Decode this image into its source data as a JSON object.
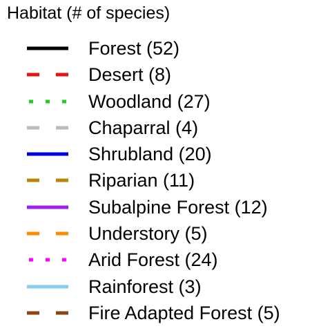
{
  "chart_data": {
    "type": "legend",
    "title": "Habitat (# of species)",
    "entries": [
      {
        "name": "Forest",
        "count": 52,
        "label": "Forest (52)",
        "color": "#000000",
        "line_style": "solid"
      },
      {
        "name": "Desert",
        "count": 8,
        "label": "Desert (8)",
        "color": "#ee1111",
        "line_style": "dashed"
      },
      {
        "name": "Woodland",
        "count": 27,
        "label": "Woodland (27)",
        "color": "#22cc22",
        "line_style": "dotted"
      },
      {
        "name": "Chaparral",
        "count": 4,
        "label": "Chaparral (4)",
        "color": "#bbbbbb",
        "line_style": "dashed"
      },
      {
        "name": "Shrubland",
        "count": 20,
        "label": "Shrubland (20)",
        "color": "#0000dd",
        "line_style": "solid"
      },
      {
        "name": "Riparian",
        "count": 11,
        "label": "Riparian (11)",
        "color": "#b8860b",
        "line_style": "dashed"
      },
      {
        "name": "Subalpine Forest",
        "count": 12,
        "label": "Subalpine Forest (12)",
        "color": "#a020f0",
        "line_style": "solid"
      },
      {
        "name": "Understory",
        "count": 5,
        "label": "Understory (5)",
        "color": "#ff8c00",
        "line_style": "dashed"
      },
      {
        "name": "Arid Forest",
        "count": 24,
        "label": "Arid Forest (24)",
        "color": "#ff00ff",
        "line_style": "dotted"
      },
      {
        "name": "Rainforest",
        "count": 3,
        "label": "Rainforest (3)",
        "color": "#87ceeb",
        "line_style": "solid"
      },
      {
        "name": "Fire Adapted Forest",
        "count": 5,
        "label": "Fire Adapted Forest (5)",
        "color": "#8b4513",
        "line_style": "dashed"
      }
    ]
  }
}
